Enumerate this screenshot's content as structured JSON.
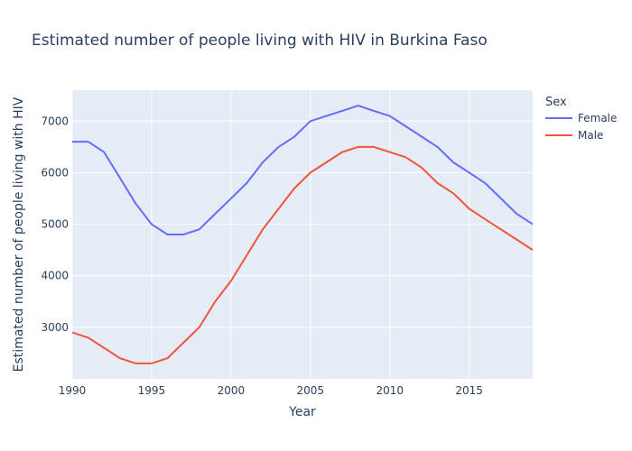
{
  "chart_data": {
    "type": "line",
    "title": "Estimated number of people living with HIV in Burkina Faso",
    "xlabel": "Year",
    "ylabel": "Estimated number of people living with HIV",
    "xlim": [
      1990,
      2019
    ],
    "ylim": [
      2000,
      7600
    ],
    "x_ticks": [
      1990,
      1995,
      2000,
      2005,
      2010,
      2015
    ],
    "y_ticks": [
      3000,
      4000,
      5000,
      6000,
      7000
    ],
    "grid": true,
    "legend": {
      "title": "Sex",
      "placement": "top-right"
    },
    "x": [
      1990,
      1991,
      1992,
      1993,
      1994,
      1995,
      1996,
      1997,
      1998,
      1999,
      2000,
      2001,
      2002,
      2003,
      2004,
      2005,
      2006,
      2007,
      2008,
      2009,
      2010,
      2011,
      2012,
      2013,
      2014,
      2015,
      2016,
      2017,
      2018,
      2019
    ],
    "series": [
      {
        "name": "Female",
        "color": "#636efa",
        "values": [
          6600,
          6600,
          6400,
          5900,
          5400,
          5000,
          4800,
          4800,
          4900,
          5200,
          5500,
          5800,
          6200,
          6500,
          6700,
          7000,
          7100,
          7200,
          7300,
          7200,
          7100,
          6900,
          6700,
          6500,
          6200,
          6000,
          5800,
          5500,
          5200,
          5000
        ]
      },
      {
        "name": "Male",
        "color": "#ef553b",
        "values": [
          2900,
          2800,
          2600,
          2400,
          2300,
          2300,
          2400,
          2700,
          3000,
          3500,
          3900,
          4400,
          4900,
          5300,
          5700,
          6000,
          6200,
          6400,
          6500,
          6500,
          6400,
          6300,
          6100,
          5800,
          5600,
          5300,
          5100,
          4900,
          4700,
          4500
        ]
      }
    ]
  }
}
